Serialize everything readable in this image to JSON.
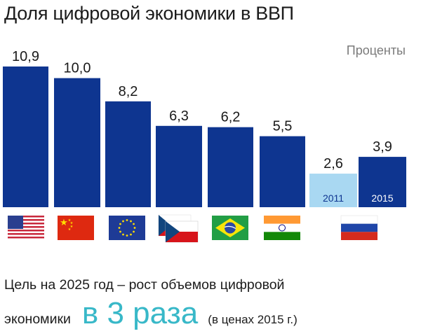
{
  "title": "Доля цифровой экономики в ВВП",
  "units": "Проценты",
  "chart_data": {
    "type": "bar",
    "title": "Доля цифровой экономики в ВВП",
    "ylabel": "Проценты",
    "ylim": [
      0,
      10.9
    ],
    "categories": [
      "USA",
      "China",
      "EU",
      "Czech Republic",
      "Brazil",
      "India",
      "Russia 2011",
      "Russia 2015"
    ],
    "values": [
      10.9,
      10.0,
      8.2,
      6.3,
      6.2,
      5.5,
      2.6,
      3.9
    ],
    "value_labels": [
      "10,9",
      "10,0",
      "8,2",
      "6,3",
      "6,2",
      "5,5",
      "2,6",
      "3,9"
    ],
    "year_labels": [
      "",
      "",
      "",
      "",
      "",
      "",
      "2011",
      "2015"
    ],
    "flags": [
      "usa-flag-icon",
      "china-flag-icon",
      "eu-flag-icon",
      "czech-flag-icon",
      "brazil-flag-icon",
      "india-flag-icon",
      "russia-flag-icon"
    ],
    "colors": {
      "bar": "#0e3590",
      "bar_2011": "#a9d8f2",
      "year_text_2011": "#0e3590",
      "year_text_2015": "#ffffff"
    },
    "grid": false
  },
  "goal": {
    "line1": "Цель на 2025 год – рост объемов цифровой",
    "prefix": "экономики",
    "highlight": "в 3 раза",
    "note": "(в ценах 2015 г.)"
  }
}
